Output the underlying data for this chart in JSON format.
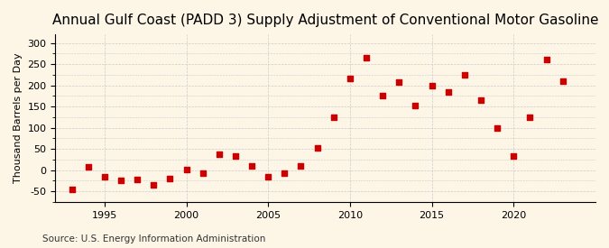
{
  "title": "Annual Gulf Coast (PADD 3) Supply Adjustment of Conventional Motor Gasoline",
  "ylabel": "Thousand Barrels per Day",
  "source": "Source: U.S. Energy Information Administration",
  "background_color": "#fdf5e6",
  "marker_color": "#cc0000",
  "years": [
    1993,
    1994,
    1995,
    1996,
    1997,
    1998,
    1999,
    2000,
    2001,
    2002,
    2003,
    2004,
    2005,
    2006,
    2007,
    2008,
    2009,
    2010,
    2011,
    2012,
    2013,
    2014,
    2015,
    2016,
    2017,
    2018,
    2019,
    2020,
    2021,
    2022,
    2023
  ],
  "values": [
    -45,
    7,
    -15,
    -25,
    -22,
    -35,
    -20,
    2,
    -8,
    38,
    33,
    10,
    -15,
    -8,
    10,
    52,
    125,
    215,
    265,
    175,
    208,
    153,
    200,
    185,
    225,
    165,
    100,
    33,
    125,
    260,
    210
  ],
  "xlim": [
    1992,
    2025
  ],
  "ylim": [
    -75,
    320
  ],
  "yticks": [
    -50,
    0,
    50,
    100,
    150,
    200,
    250,
    300
  ],
  "xticks": [
    1995,
    2000,
    2005,
    2010,
    2015,
    2020
  ],
  "grid_color": "#cccccc",
  "title_fontsize": 11,
  "label_fontsize": 8,
  "tick_fontsize": 8,
  "source_fontsize": 7.5
}
